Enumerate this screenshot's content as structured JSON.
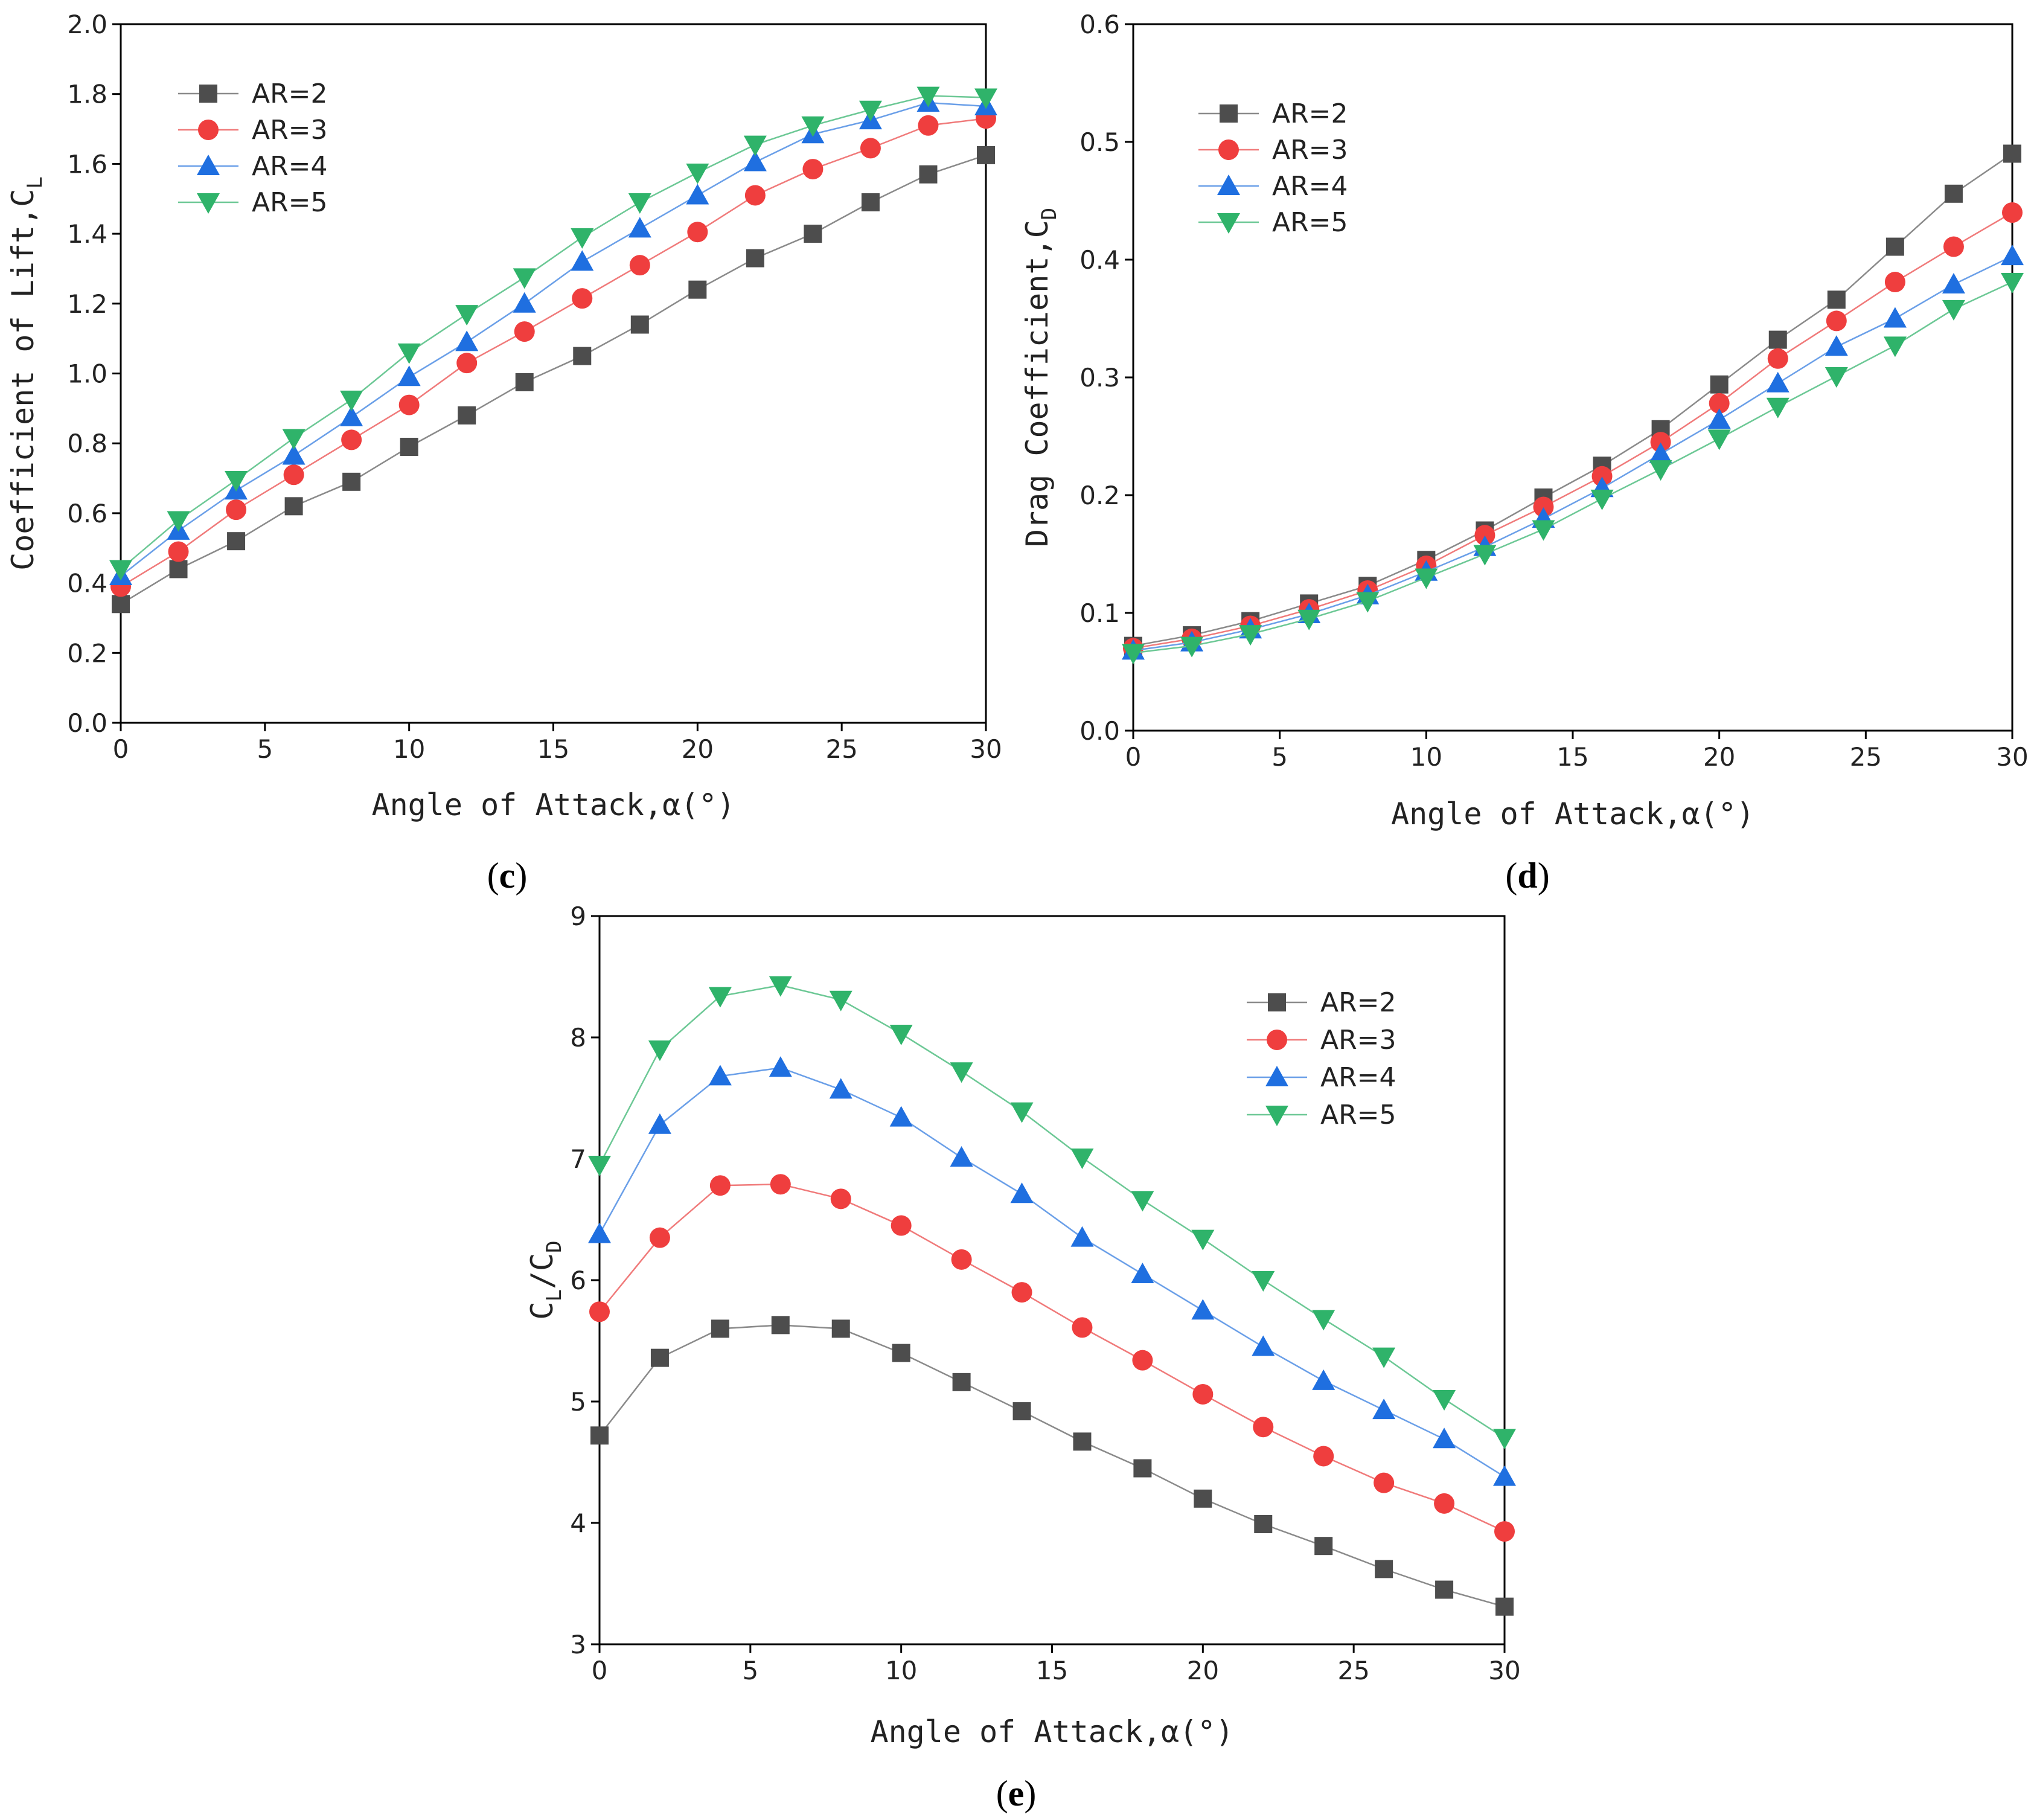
{
  "chart_data": [
    {
      "type": "line",
      "panel": "c",
      "caption": "c",
      "xlabel": "Angle of Attack,α(°)",
      "ylabel": "Coefficient of Lift,C",
      "ylabel_sub": "L",
      "xlim": [
        0,
        30
      ],
      "ylim": [
        0,
        2.0
      ],
      "xticks": [
        0,
        5,
        10,
        15,
        20,
        25,
        30
      ],
      "xtick_labels": [
        "0",
        "5",
        "10",
        "15",
        "20",
        "25",
        "30"
      ],
      "yticks": [
        0,
        0.2,
        0.4,
        0.6,
        0.8,
        1.0,
        1.2,
        1.4,
        1.6,
        1.8,
        2.0
      ],
      "ytick_labels": [
        "0.0",
        "0.2",
        "0.4",
        "0.6",
        "0.8",
        "1.0",
        "1.2",
        "1.4",
        "1.6",
        "1.8",
        "2.0"
      ],
      "legend_position": "top-left",
      "x": [
        0,
        2,
        4,
        6,
        8,
        10,
        12,
        14,
        16,
        18,
        20,
        22,
        24,
        26,
        28,
        30
      ],
      "series": [
        {
          "name": "AR=2",
          "values": [
            0.34,
            0.44,
            0.52,
            0.62,
            0.69,
            0.79,
            0.88,
            0.975,
            1.05,
            1.14,
            1.24,
            1.33,
            1.4,
            1.49,
            1.57,
            1.625
          ]
        },
        {
          "name": "AR=3",
          "values": [
            0.39,
            0.49,
            0.61,
            0.71,
            0.81,
            0.91,
            1.03,
            1.12,
            1.215,
            1.31,
            1.405,
            1.51,
            1.585,
            1.645,
            1.71,
            1.73
          ]
        },
        {
          "name": "AR=4",
          "values": [
            0.42,
            0.55,
            0.665,
            0.765,
            0.875,
            0.99,
            1.09,
            1.2,
            1.32,
            1.415,
            1.51,
            1.605,
            1.685,
            1.725,
            1.775,
            1.765
          ]
        },
        {
          "name": "AR=5",
          "values": [
            0.44,
            0.58,
            0.695,
            0.815,
            0.925,
            1.06,
            1.17,
            1.275,
            1.39,
            1.49,
            1.575,
            1.655,
            1.71,
            1.755,
            1.795,
            1.79
          ]
        }
      ]
    },
    {
      "type": "line",
      "panel": "d",
      "caption": "d",
      "xlabel": "Angle of Attack,α(°)",
      "ylabel": "Drag Coefficient,C",
      "ylabel_sub": "D",
      "xlim": [
        0,
        30
      ],
      "ylim": [
        0,
        0.6
      ],
      "xticks": [
        0,
        5,
        10,
        15,
        20,
        25,
        30
      ],
      "xtick_labels": [
        "0",
        "5",
        "10",
        "15",
        "20",
        "25",
        "30"
      ],
      "yticks": [
        0,
        0.1,
        0.2,
        0.3,
        0.4,
        0.5,
        0.6
      ],
      "ytick_labels": [
        "0.0",
        "0.1",
        "0.2",
        "0.3",
        "0.4",
        "0.5",
        "0.6"
      ],
      "legend_position": "top-left",
      "x": [
        0,
        2,
        4,
        6,
        8,
        10,
        12,
        14,
        16,
        18,
        20,
        22,
        24,
        26,
        28,
        30
      ],
      "series": [
        {
          "name": "AR=2",
          "values": [
            0.072,
            0.081,
            0.093,
            0.108,
            0.123,
            0.145,
            0.17,
            0.198,
            0.225,
            0.256,
            0.294,
            0.332,
            0.366,
            0.411,
            0.456,
            0.49
          ]
        },
        {
          "name": "AR=3",
          "values": [
            0.07,
            0.078,
            0.089,
            0.103,
            0.119,
            0.14,
            0.166,
            0.19,
            0.216,
            0.245,
            0.278,
            0.316,
            0.348,
            0.381,
            0.411,
            0.44
          ]
        },
        {
          "name": "AR=4",
          "values": [
            0.068,
            0.075,
            0.086,
            0.099,
            0.115,
            0.135,
            0.156,
            0.18,
            0.206,
            0.235,
            0.264,
            0.295,
            0.326,
            0.35,
            0.379,
            0.403
          ]
        },
        {
          "name": "AR=5",
          "values": [
            0.066,
            0.072,
            0.082,
            0.095,
            0.11,
            0.13,
            0.15,
            0.171,
            0.197,
            0.222,
            0.248,
            0.275,
            0.301,
            0.327,
            0.358,
            0.381
          ]
        }
      ]
    },
    {
      "type": "line",
      "panel": "e",
      "caption": "e",
      "xlabel": "Angle of Attack,α(°)",
      "ylabel": "C",
      "ylabel_sub": "L",
      "ylabel_mid": "/C",
      "ylabel_sub2": "D",
      "xlim": [
        0,
        30
      ],
      "ylim": [
        3,
        9
      ],
      "xticks": [
        0,
        5,
        10,
        15,
        20,
        25,
        30
      ],
      "xtick_labels": [
        "0",
        "5",
        "10",
        "15",
        "20",
        "25",
        "30"
      ],
      "yticks": [
        3,
        4,
        5,
        6,
        7,
        8,
        9
      ],
      "ytick_labels": [
        "3",
        "4",
        "5",
        "6",
        "7",
        "8",
        "9"
      ],
      "legend_position": "top-right",
      "x": [
        0,
        2,
        4,
        6,
        8,
        10,
        12,
        14,
        16,
        18,
        20,
        22,
        24,
        26,
        28,
        30
      ],
      "series": [
        {
          "name": "AR=2",
          "values": [
            4.72,
            5.36,
            5.6,
            5.63,
            5.6,
            5.4,
            5.16,
            4.92,
            4.67,
            4.45,
            4.2,
            3.99,
            3.81,
            3.62,
            3.45,
            3.31
          ]
        },
        {
          "name": "AR=3",
          "values": [
            5.74,
            6.35,
            6.78,
            6.79,
            6.67,
            6.45,
            6.17,
            5.9,
            5.61,
            5.34,
            5.06,
            4.79,
            4.55,
            4.33,
            4.16,
            3.93
          ]
        },
        {
          "name": "AR=4",
          "values": [
            6.38,
            7.28,
            7.68,
            7.75,
            7.57,
            7.34,
            7.01,
            6.71,
            6.35,
            6.05,
            5.75,
            5.45,
            5.17,
            4.93,
            4.69,
            4.38
          ]
        },
        {
          "name": "AR=5",
          "values": [
            6.95,
            7.9,
            8.34,
            8.43,
            8.31,
            8.03,
            7.72,
            7.39,
            7.01,
            6.66,
            6.34,
            6.0,
            5.68,
            5.37,
            5.02,
            4.7
          ]
        }
      ]
    }
  ],
  "style": {
    "series_colors": [
      "#4d4d4d",
      "#ef3e3e",
      "#1f6fe0",
      "#2fb36a"
    ],
    "line_colors": [
      "#8a8a8a",
      "#f07a7a",
      "#6a9fe8",
      "#6cc895"
    ],
    "series_markers": [
      "square",
      "circle",
      "triangle-up",
      "triangle-down"
    ]
  }
}
